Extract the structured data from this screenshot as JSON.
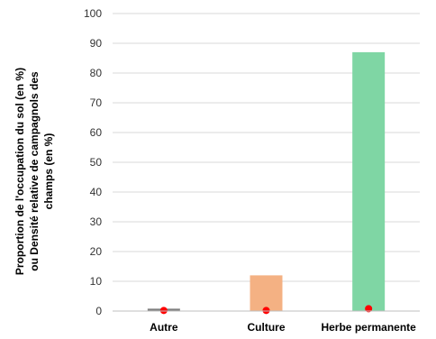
{
  "chart_data": {
    "type": "bar",
    "categories": [
      "Autre",
      "Culture",
      "Herbe permanente"
    ],
    "series": [
      {
        "values": [
          0.8,
          12,
          87
        ],
        "colors": [
          "#7f7f7f",
          "#f4b183",
          "#7fd6a4"
        ]
      },
      {
        "type": "scatter",
        "values": [
          0.2,
          0.2,
          0.8
        ],
        "color": "#ff0000"
      }
    ],
    "ylabel_lines": [
      "Proportion de l'occupation du sol (en %)",
      "ou Densité relative de campagnols des",
      "champs (en %)"
    ],
    "xlabel": "",
    "ylim": [
      0,
      100
    ],
    "yticks": [
      "0",
      "10",
      "20",
      "30",
      "40",
      "50",
      "60",
      "70",
      "80",
      "90",
      "100"
    ],
    "grid": true,
    "legend": "none"
  }
}
